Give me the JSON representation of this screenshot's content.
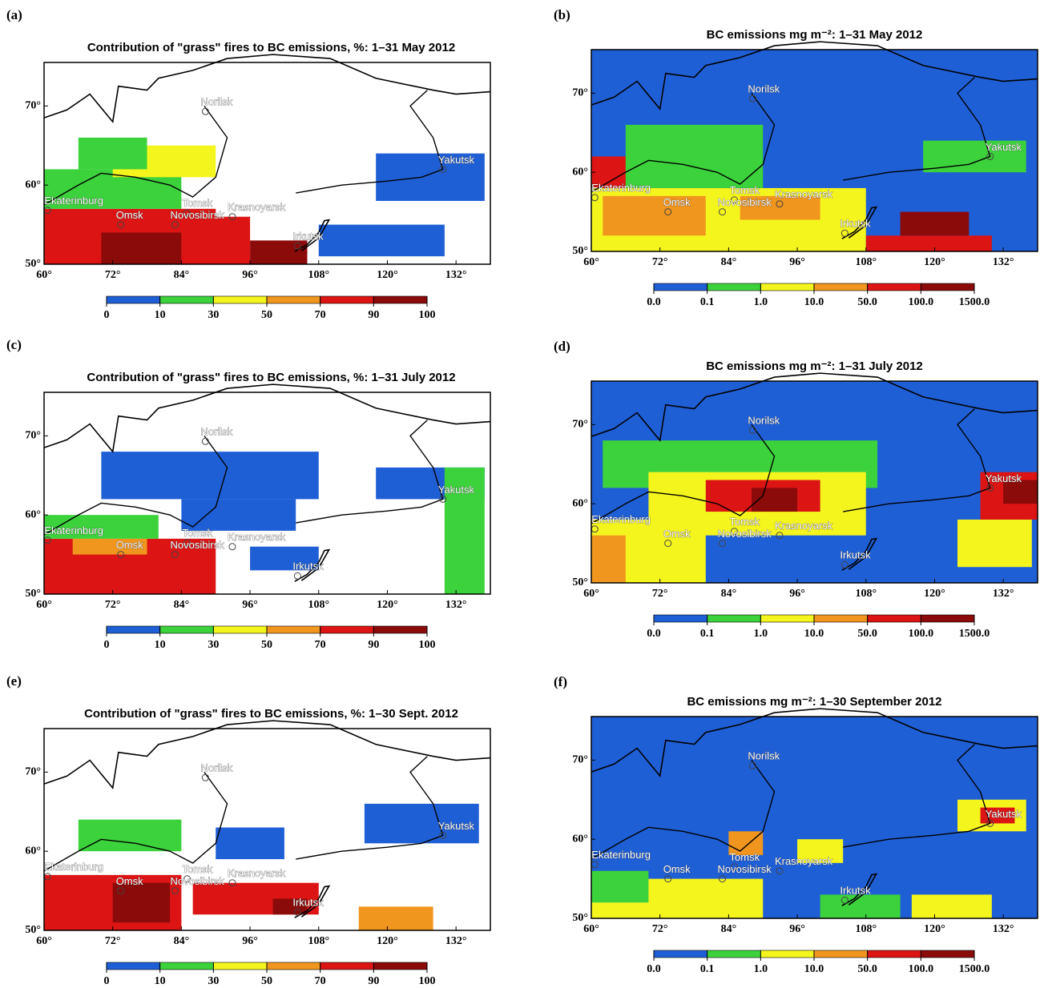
{
  "panels": [
    {
      "label": "(a)",
      "title": "Contribution of \"grass\" fires to BC emissions, %: 1–31 May 2012",
      "kind": "percent",
      "patches": [
        [
          60,
          50,
          90,
          57,
          4
        ],
        [
          70,
          50,
          84,
          54,
          5
        ],
        [
          96,
          50,
          106,
          53,
          5
        ],
        [
          60,
          57,
          84,
          62,
          1
        ],
        [
          84,
          50,
          96,
          56,
          4
        ],
        [
          108,
          51,
          130,
          55,
          0
        ],
        [
          118,
          58,
          137,
          64,
          0
        ],
        [
          72,
          61,
          90,
          65,
          2
        ],
        [
          66,
          62,
          78,
          66,
          1
        ]
      ]
    },
    {
      "label": "(b)",
      "title": "BC emissions mg m⁻²: 1–31 May 2012",
      "kind": "emission",
      "patches": [
        [
          60,
          50,
          138,
          75.5,
          0
        ],
        [
          60,
          50,
          108,
          58,
          2
        ],
        [
          62,
          52,
          80,
          57,
          3
        ],
        [
          86,
          54,
          100,
          57,
          3
        ],
        [
          108,
          50,
          130,
          52,
          4
        ],
        [
          114,
          52,
          126,
          55,
          5
        ],
        [
          60,
          58,
          72,
          62,
          4
        ],
        [
          66,
          58,
          90,
          66,
          1
        ],
        [
          118,
          60,
          136,
          64,
          1
        ]
      ]
    },
    {
      "label": "(c)",
      "title": "Contribution of \"grass\" fires to BC emissions, %: 1–31 July 2012",
      "kind": "percent",
      "patches": [
        [
          60,
          50,
          90,
          57,
          4
        ],
        [
          65,
          55,
          78,
          57,
          3
        ],
        [
          84,
          58,
          104,
          62,
          0
        ],
        [
          70,
          62,
          108,
          68,
          0
        ],
        [
          118,
          62,
          137,
          66,
          0
        ],
        [
          96,
          53,
          108,
          56,
          0
        ],
        [
          130,
          50,
          137,
          66,
          1
        ],
        [
          60,
          57,
          80,
          60,
          1
        ]
      ]
    },
    {
      "label": "(d)",
      "title": "BC emissions mg m⁻²: 1–31 July 2012",
      "kind": "emission",
      "patches": [
        [
          60,
          50,
          138,
          75.5,
          0
        ],
        [
          62,
          62,
          110,
          68,
          1
        ],
        [
          70,
          56,
          108,
          64,
          2
        ],
        [
          80,
          59,
          100,
          63,
          4
        ],
        [
          88,
          59,
          96,
          62,
          5
        ],
        [
          60,
          50,
          80,
          58,
          2
        ],
        [
          60,
          50,
          66,
          56,
          3
        ],
        [
          124,
          52,
          137,
          58,
          2
        ],
        [
          128,
          58,
          138,
          64,
          4
        ],
        [
          132,
          60,
          138,
          63,
          5
        ]
      ]
    },
    {
      "label": "(e)",
      "title": "Contribution of \"grass\" fires to BC emissions, %: 1–30 Sept. 2012",
      "kind": "percent",
      "patches": [
        [
          60,
          50,
          84,
          57,
          4
        ],
        [
          72,
          51,
          82,
          56,
          5
        ],
        [
          86,
          52,
          108,
          56,
          4
        ],
        [
          100,
          52,
          106,
          54,
          5
        ],
        [
          115,
          50,
          128,
          53,
          3
        ],
        [
          116,
          61,
          136,
          66,
          0
        ],
        [
          90,
          59,
          102,
          63,
          0
        ],
        [
          66,
          60,
          84,
          64,
          1
        ]
      ]
    },
    {
      "label": "(f)",
      "title": "BC emissions mg m⁻²: 1–30 September 2012",
      "kind": "emission",
      "patches": [
        [
          60,
          50,
          138,
          75.5,
          0
        ],
        [
          124,
          61,
          136,
          65,
          2
        ],
        [
          128,
          62,
          134,
          64,
          4
        ],
        [
          60,
          50,
          90,
          55,
          2
        ],
        [
          60,
          52,
          70,
          56,
          1
        ],
        [
          84,
          58,
          90,
          61,
          3
        ],
        [
          96,
          57,
          104,
          60,
          2
        ],
        [
          100,
          50,
          114,
          53,
          1
        ],
        [
          116,
          50,
          130,
          53,
          2
        ]
      ]
    }
  ],
  "xlim": [
    60,
    138
  ],
  "ylim": [
    50,
    75.5
  ],
  "xticks": [
    {
      "value": 60,
      "label": "60°"
    },
    {
      "value": 72,
      "label": "72°"
    },
    {
      "value": 84,
      "label": "84°"
    },
    {
      "value": 96,
      "label": "96°"
    },
    {
      "value": 108,
      "label": "108°"
    },
    {
      "value": 120,
      "label": "120°"
    },
    {
      "value": 132,
      "label": "132°"
    }
  ],
  "yticks": [
    {
      "value": 50,
      "label": "50°"
    },
    {
      "value": 60,
      "label": "60°"
    },
    {
      "value": 70,
      "label": "70°"
    }
  ],
  "cities": [
    "Norilsk",
    "Yakutsk",
    "Ekaterinburg",
    "Omsk",
    "Tomsk",
    "Krasnoyarsk",
    "Novosibirsk",
    "Irkutsk"
  ],
  "colors": [
    "#1f5fd6",
    "#3cd23c",
    "#f5f51e",
    "#f0961e",
    "#dc1414",
    "#8b0a0a"
  ],
  "percent_ticks": [
    0,
    10,
    30,
    50,
    70,
    90,
    100
  ],
  "emission_ticks": [
    {
      "value": 0,
      "label": "0.0"
    },
    {
      "value": 0.1,
      "label": "0.1"
    },
    {
      "value": 1,
      "label": "1.0"
    },
    {
      "value": 10,
      "label": "10.0"
    },
    {
      "value": 50,
      "label": "50.0"
    },
    {
      "value": 100,
      "label": "100.0"
    },
    {
      "value": 1500,
      "label": "1500.0"
    }
  ]
}
